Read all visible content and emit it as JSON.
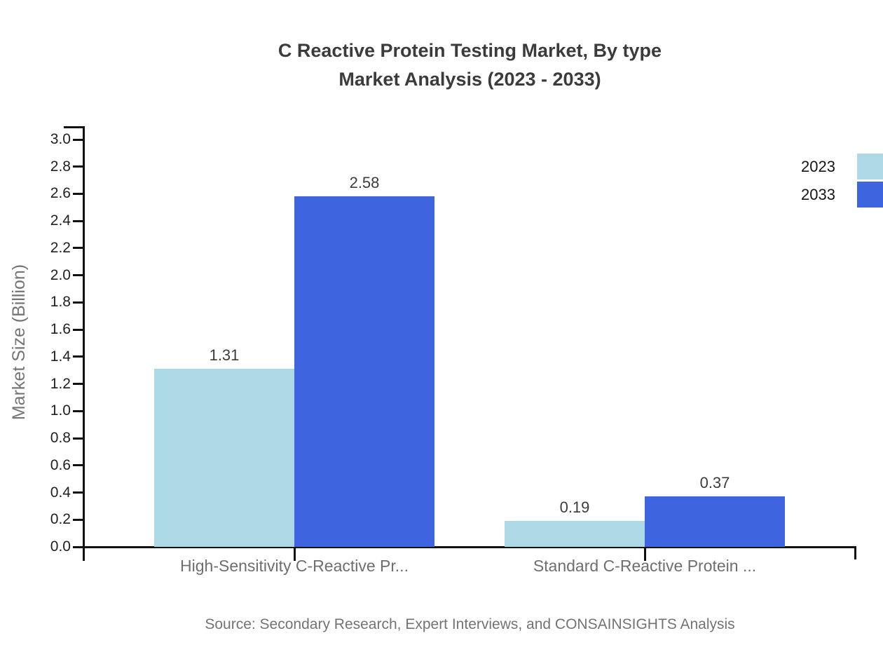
{
  "title": {
    "line1": "C Reactive Protein Testing Market, By type",
    "line2": "Market Analysis (2023 - 2033)"
  },
  "footer": {
    "source": "Source: Secondary Research, Expert Interviews, and CONSAINSIGHTS Analysis"
  },
  "chart_data": {
    "type": "bar",
    "title": "C Reactive Protein Testing Market, By type Market Analysis (2023 - 2033)",
    "categories": [
      "High-Sensitivity C-Reactive Pr...",
      "Standard C-Reactive Protein ..."
    ],
    "series": [
      {
        "name": "2023",
        "color": "#ADD8E6",
        "values": [
          1.31,
          0.19
        ]
      },
      {
        "name": "2033",
        "color": "#3E65DF",
        "values": [
          2.58,
          0.37
        ]
      }
    ],
    "value_label_format": "0.00",
    "xlabel": "",
    "ylabel": "Market Size (Billion)",
    "ylim": [
      0,
      3.0
    ],
    "ytick_step": 0.2,
    "grid": false,
    "legend_position": "top-right",
    "axis_color": "#111111",
    "background_color": "#ffffff"
  }
}
